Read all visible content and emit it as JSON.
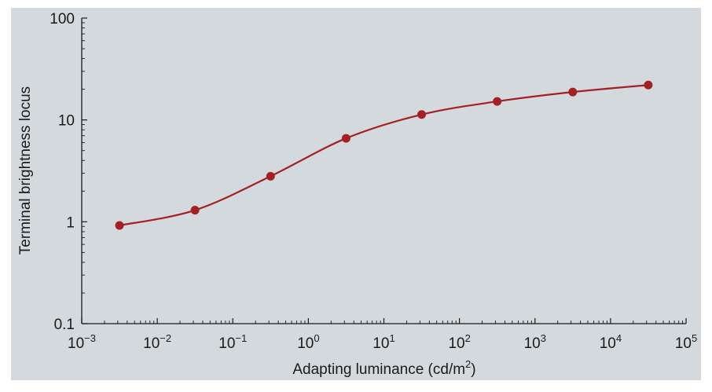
{
  "colors": {
    "background": "#d3d9dc",
    "series": "#a32124",
    "axis": "#1a1a1a"
  },
  "chart_data": {
    "type": "line",
    "title": "",
    "xlabel": "Adapting luminance (cd/m",
    "xlabel_sup": "2",
    "xlabel_end": ")",
    "ylabel": "Terminal brightness locus",
    "x_scale": "log",
    "y_scale": "log",
    "xlim": [
      0.001,
      100000
    ],
    "ylim": [
      0.1,
      100
    ],
    "grid": false,
    "legend": "none",
    "x_ticks": [
      {
        "value": 0.001,
        "base": "10",
        "exp": "−3"
      },
      {
        "value": 0.01,
        "base": "10",
        "exp": "−2"
      },
      {
        "value": 0.1,
        "base": "10",
        "exp": "−1"
      },
      {
        "value": 1,
        "base": "10",
        "exp": "0"
      },
      {
        "value": 10,
        "base": "10",
        "exp": "1"
      },
      {
        "value": 100,
        "base": "10",
        "exp": "2"
      },
      {
        "value": 1000,
        "base": "10",
        "exp": "3"
      },
      {
        "value": 10000,
        "base": "10",
        "exp": "4"
      },
      {
        "value": 100000,
        "base": "10",
        "exp": "5"
      }
    ],
    "y_ticks": [
      {
        "value": 0.1,
        "label": "0.1"
      },
      {
        "value": 1,
        "label": "1"
      },
      {
        "value": 10,
        "label": "10"
      },
      {
        "value": 100,
        "label": "100"
      }
    ],
    "series": [
      {
        "x": [
          0.00316,
          0.0316,
          0.316,
          3.16,
          31.6,
          316,
          3160,
          31600
        ],
        "y": [
          0.92,
          1.3,
          2.8,
          6.6,
          11.3,
          15.2,
          18.8,
          22.0
        ]
      }
    ]
  }
}
